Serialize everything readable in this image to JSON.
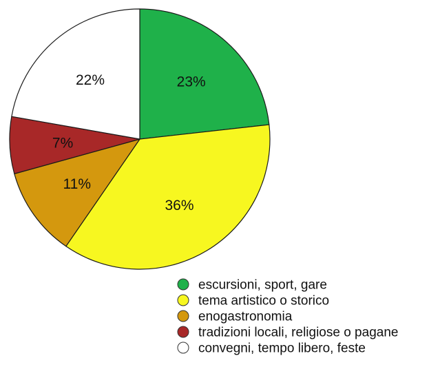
{
  "chart_data": {
    "type": "pie",
    "title": "",
    "start_angle_deg": 0,
    "direction": "clockwise",
    "categories": [
      "escursioni, sport, gare",
      "tema artistico o storico",
      "enogastronomia",
      "tradizioni locali, religiose o pagane",
      "convegni, tempo libero, feste"
    ],
    "values": [
      23,
      36,
      11,
      7,
      22
    ],
    "labels": [
      "23%",
      "36%",
      "11%",
      "7%",
      "22%"
    ],
    "colors": [
      "#1fb14a",
      "#f7f720",
      "#d4980e",
      "#a82828",
      "#ffffff"
    ],
    "legend_placement": "bottom-right"
  }
}
